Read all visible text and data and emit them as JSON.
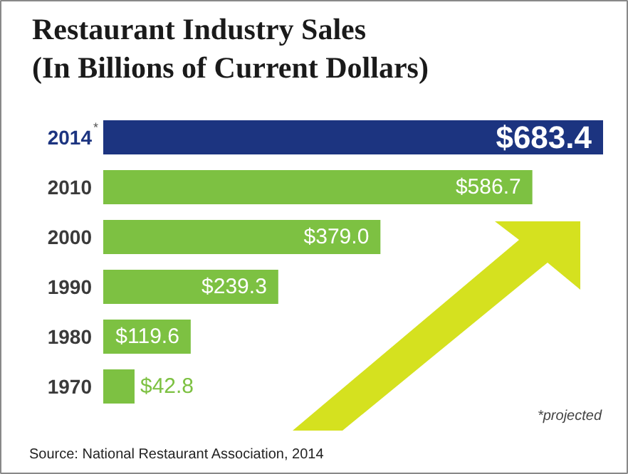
{
  "chart_data": {
    "type": "bar",
    "orientation": "horizontal",
    "title": "Restaurant Industry Sales\n(In Billions of Current Dollars)",
    "categories": [
      "2014$^{*}$",
      "2010",
      "2000",
      "1990",
      "1980",
      "1970"
    ],
    "values": [
      683.4,
      586.7,
      379.0,
      239.3,
      119.6,
      42.8
    ],
    "colors": [
      "#1c3480",
      "#7dc142",
      "#7dc142",
      "#7dc142",
      "#7dc142",
      "#7dc142"
    ],
    "value_labels": [
      "$683.4",
      "$586.7",
      "$379.0",
      "$239.3",
      "$119.6",
      "$42.8"
    ],
    "annotations": [
      "*projected",
      "Source: National Restaurant Association, 2014"
    ]
  }
}
